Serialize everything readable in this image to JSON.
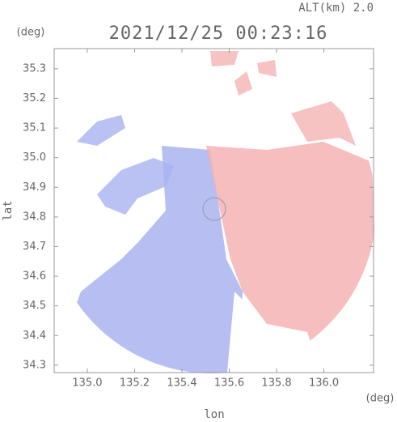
{
  "chart_data": {
    "type": "radar-field",
    "title": "2021/12/25 00:23:16",
    "subtitle": "ALT(km) 2.0",
    "x_label": "lon",
    "y_label": "lat",
    "x_unit": "(deg)",
    "y_unit": "(deg)",
    "xlim": [
      134.86,
      136.21
    ],
    "ylim": [
      34.275,
      35.368
    ],
    "xticks": [
      {
        "value": 135,
        "label": "135.0"
      },
      135.2,
      135.4,
      135.6,
      135.8,
      {
        "value": 136,
        "label": "136.0"
      }
    ],
    "yticks": [
      34.3,
      34.4,
      34.5,
      34.6,
      34.7,
      34.8,
      34.9,
      {
        "value": 35,
        "label": "35.0"
      },
      35.1,
      35.2,
      35.3
    ],
    "colors": {
      "toward": "#a9b3f0",
      "away": "#f5b3b3"
    }
  }
}
